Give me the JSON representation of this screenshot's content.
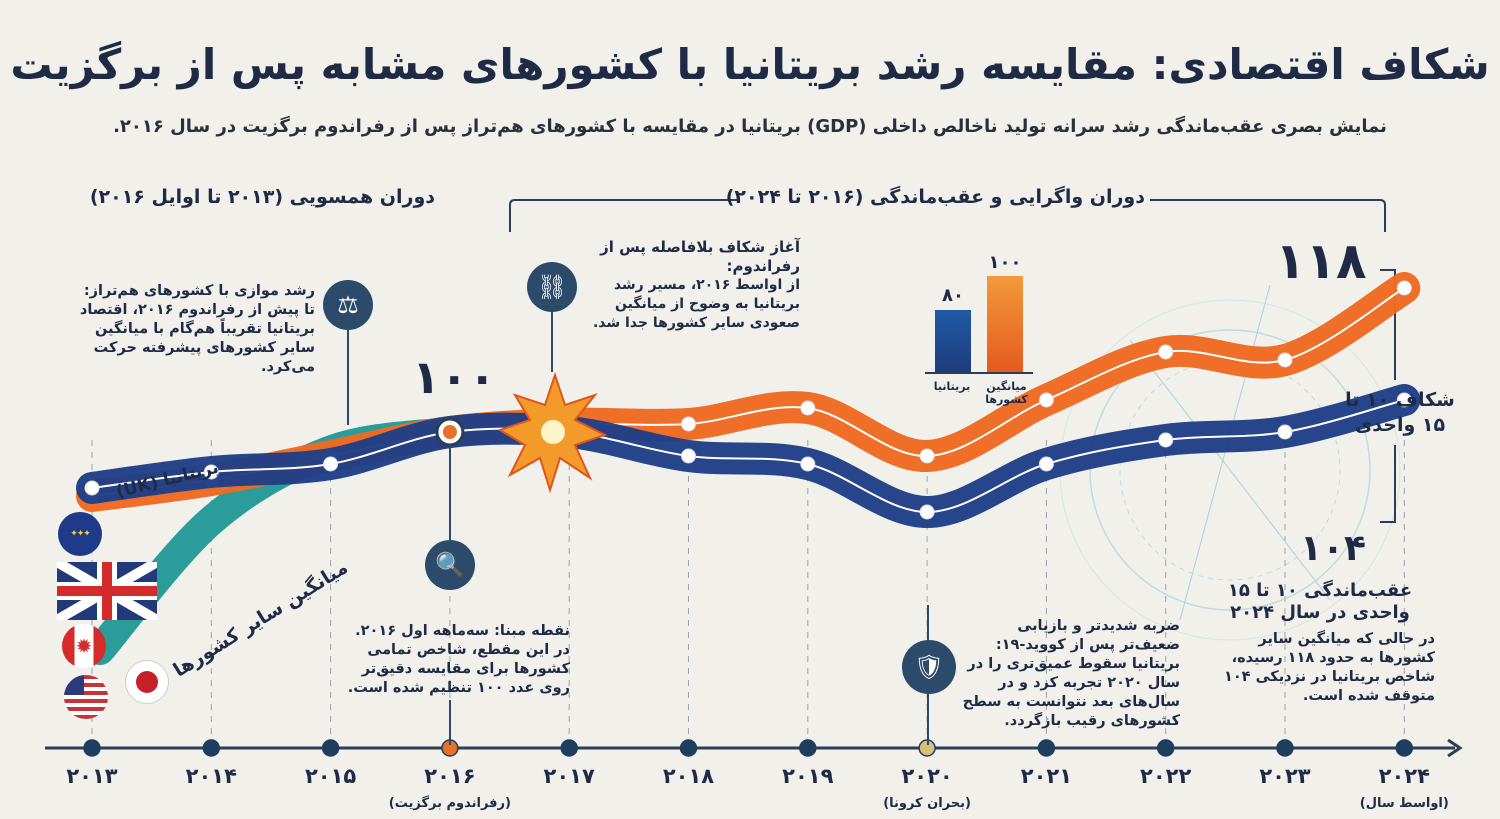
{
  "title": "شکاف اقتصادی: مقایسه رشد بریتانیا با کشورهای مشابه پس از برگزیت",
  "subtitle": "نمایش بصری عقب‌ماندگی رشد سرانه تولید ناخالص داخلی (GDP) بریتانیا در مقایسه با کشورهای هم‌تراز پس از رفراندوم برگزیت در سال ۲۰۱۶.",
  "periods": {
    "convergence": "دوران همسویی (۲۰۱۳ تا اوایل ۲۰۱۶)",
    "divergence": "دوران واگرایی و عقب‌ماندگی (۲۰۱۶ تا ۲۰۲۴)"
  },
  "annotations": {
    "parallel": {
      "title": "رشد موازی با کشورهای هم‌تراز:",
      "body": "تا پیش از رفراندوم ۲۰۱۶، اقتصاد بریتانیا تقریباً هم‌گام با میانگین سایر کشورهای پیشرفته حرکت می‌کرد.",
      "icon": "scales-icon"
    },
    "gap_start": {
      "title": "آغاز شکاف بلافاصله پس از رفراندوم:",
      "body": "از اواسط ۲۰۱۶، مسیر رشد بریتانیا به وضوح از میانگین صعودی سایر کشورها جدا شد.",
      "icon": "broken-chain-icon"
    },
    "baseline": {
      "title": "نقطه مبنا: سه‌ماهه اول ۲۰۱۶.",
      "body": "در این مقطع، شاخص تمامی کشورها برای مقایسه دقیق‌تر روی عدد ۱۰۰ تنظیم شده است.",
      "icon": "magnifier-icon"
    },
    "covid": {
      "title": "ضربه شدیدتر و بازیابی ضعیف‌تر پس از کووید-۱۹:",
      "body": "بریتانیا سقوط عمیق‌تری را در سال ۲۰۲۰ تجربه کرد و در سال‌های بعد نتوانست به سطح کشورهای رقیب بازگردد.",
      "icon": "cracked-shield-icon"
    },
    "lag": {
      "title": "عقب‌ماندگی ۱۰ تا ۱۵ واحدی در سال ۲۰۲۴",
      "body": "در حالی که میانگین سایر کشورها به حدود ۱۱۸ رسیده، شاخص بریتانیا در نزدیکی ۱۰۴ متوقف شده است."
    }
  },
  "value_labels": {
    "baseline": "۱۰۰",
    "others_end": "۱۱۸",
    "uk_end": "۱۰۴"
  },
  "gap_label": "شکاف ۱۰ تا ۱۵ واحدی",
  "series_labels": {
    "uk": "بریتانیا (UK)",
    "others": "میانگین سایر کشورها"
  },
  "flags": [
    "eu-flag-icon",
    "uk-flag-icon",
    "canada-flag-icon",
    "usa-flag-icon",
    "japan-flag-icon"
  ],
  "inset_bar": {
    "categories": [
      "بریتانیا",
      "میانگین کشورها"
    ],
    "values": [
      80,
      100
    ],
    "value_labels": [
      "۸۰",
      "۱۰۰"
    ],
    "colors": [
      "#1f4a8c",
      "#ee6a22"
    ]
  },
  "timeline": {
    "years": [
      "۲۰۱۳",
      "۲۰۱۴",
      "۲۰۱۵",
      "۲۰۱۶",
      "۲۰۱۷",
      "۲۰۱۸",
      "۲۰۱۹",
      "۲۰۲۰",
      "۲۰۲۱",
      "۲۰۲۲",
      "۲۰۲۳",
      "۲۰۲۴"
    ],
    "sub_labels": {
      "3": "(رفراندوم برگزیت)",
      "7": "(بحران کرونا)",
      "11": "(اواسط سال)"
    },
    "highlight": {
      "3": "#e8702a",
      "7": "#d9c07a"
    }
  },
  "chart_data": {
    "type": "line",
    "x": [
      2013,
      2014,
      2015,
      2016,
      2017,
      2018,
      2019,
      2020,
      2021,
      2022,
      2023,
      2024
    ],
    "series": [
      {
        "name": "میانگین سایر کشورها",
        "color": "#ee6a22",
        "values": [
          92,
          94,
          97,
          100,
          101,
          101,
          103,
          97,
          104,
          110,
          109,
          118
        ]
      },
      {
        "name": "بریتانیا (UK)",
        "color": "#1f3f86",
        "values": [
          93,
          95,
          96,
          100,
          100,
          97,
          96,
          90,
          96,
          99,
          100,
          104
        ]
      }
    ],
    "baseline": 100,
    "grid": "vertical dashed per year"
  }
}
